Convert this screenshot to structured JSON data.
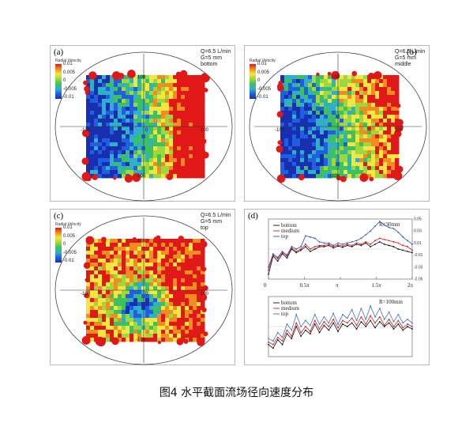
{
  "figure": {
    "caption": "图4 水平截面流场径向速度分布"
  },
  "colorbar": {
    "title": "Radial Velocity",
    "ticks": [
      "0.01",
      "0.005",
      "0",
      "-0.005",
      "-0.01"
    ],
    "colors": [
      "#e01818",
      "#f08c20",
      "#f2e640",
      "#9ed840",
      "#3cc060",
      "#30b0c8",
      "#2060e0",
      "#1830b0"
    ]
  },
  "panels": [
    {
      "id": "a",
      "label": "(a)",
      "info": [
        "Q=6.5 L/min",
        "G=5 mm",
        "bottom"
      ],
      "axis_ticks": {
        "top": "100",
        "left": "-100",
        "right": "100",
        "bottom": "-100",
        "center": "0"
      }
    },
    {
      "id": "b",
      "label": "(b)",
      "info": [
        "Q=6.5 L/min",
        "G=5 mm",
        "middle"
      ],
      "axis_ticks": {
        "top": "100",
        "left": "-100",
        "right": "100",
        "bottom": "-100",
        "center": "0"
      }
    },
    {
      "id": "c",
      "label": "(c)",
      "info": [
        "Q=6.5 L/min",
        "G=5 mm",
        "top"
      ],
      "axis_ticks": {
        "top": "100",
        "left": "-100",
        "right": "100",
        "bottom": "-100",
        "center": "0"
      }
    }
  ],
  "chart_data": {
    "type": "line",
    "label": "(d)",
    "x_ticks": [
      "0",
      "0.5π",
      "π",
      "1.5π",
      "2π"
    ],
    "xlim": [
      0,
      6.283
    ],
    "subplots": [
      {
        "annotation": "R=30mm",
        "y_ticks": [
          "0.05",
          "0.03",
          "0.01",
          "-0.01",
          "-0.03",
          "-0.05"
        ],
        "ylim": [
          -0.05,
          0.05
        ],
        "series": [
          {
            "name": "bottom",
            "color": "#111111",
            "values": [
              -0.042,
              -0.012,
              -0.02,
              -0.008,
              -0.015,
              0.0,
              -0.006,
              -0.002,
              0.004,
              -0.004,
              0.0,
              0.004,
              0.004,
              0.006,
              0.002,
              0.005,
              0.003,
              0.006,
              0.004,
              0.008,
              0.006,
              0.01,
              0.004,
              0.008,
              0.012,
              0.008,
              0.006,
              0.004,
              0.0,
              -0.002,
              -0.004,
              -0.006
            ]
          },
          {
            "name": "medium",
            "color": "#d02020",
            "values": [
              -0.035,
              -0.01,
              -0.016,
              -0.006,
              -0.012,
              0.002,
              -0.004,
              0.0,
              0.008,
              0.0,
              0.004,
              0.006,
              0.006,
              0.008,
              0.004,
              0.007,
              0.005,
              0.008,
              0.006,
              0.01,
              0.008,
              0.012,
              0.008,
              0.014,
              0.018,
              0.016,
              0.014,
              0.012,
              0.01,
              0.006,
              0.004,
              -0.002
            ]
          },
          {
            "name": "top",
            "color": "#3050b0",
            "values": [
              -0.03,
              -0.008,
              -0.014,
              -0.004,
              -0.01,
              0.004,
              0.0,
              0.004,
              0.022,
              0.02,
              0.018,
              0.012,
              0.01,
              0.01,
              0.006,
              0.01,
              0.008,
              0.01,
              0.012,
              0.014,
              0.018,
              0.024,
              0.03,
              0.038,
              0.046,
              0.04,
              0.036,
              0.034,
              0.028,
              0.02,
              0.014,
              0.008
            ]
          }
        ]
      },
      {
        "annotation": "R=100mm",
        "series": [
          {
            "name": "bottom",
            "color": "#111111",
            "values": [
              -0.03,
              -0.036,
              -0.022,
              -0.03,
              -0.012,
              -0.02,
              0.0,
              -0.016,
              -0.006,
              -0.012,
              0.004,
              -0.01,
              0.002,
              -0.006,
              0.006,
              -0.008,
              0.004,
              0.0,
              0.006,
              -0.004,
              0.008,
              0.0,
              0.01,
              -0.002,
              0.008,
              0.0,
              0.006,
              -0.004,
              0.004,
              -0.006,
              0.0,
              -0.004
            ]
          },
          {
            "name": "medium",
            "color": "#d02020",
            "values": [
              -0.026,
              -0.03,
              -0.018,
              -0.024,
              -0.006,
              -0.016,
              0.006,
              -0.01,
              0.0,
              -0.008,
              0.01,
              -0.004,
              0.008,
              0.0,
              0.012,
              -0.002,
              0.01,
              0.006,
              0.014,
              0.002,
              0.016,
              0.004,
              0.018,
              0.006,
              0.016,
              0.002,
              0.012,
              0.0,
              0.01,
              -0.002,
              0.004,
              0.0
            ]
          },
          {
            "name": "top",
            "color": "#4a70c0",
            "values": [
              -0.02,
              -0.024,
              -0.01,
              -0.018,
              0.004,
              -0.006,
              0.02,
              0.0,
              0.01,
              0.002,
              0.02,
              0.004,
              0.016,
              0.006,
              0.022,
              0.004,
              0.02,
              0.014,
              0.028,
              0.01,
              0.03,
              0.012,
              0.034,
              0.016,
              0.03,
              0.012,
              0.024,
              0.008,
              0.02,
              0.006,
              0.012,
              0.006
            ]
          }
        ]
      }
    ]
  }
}
